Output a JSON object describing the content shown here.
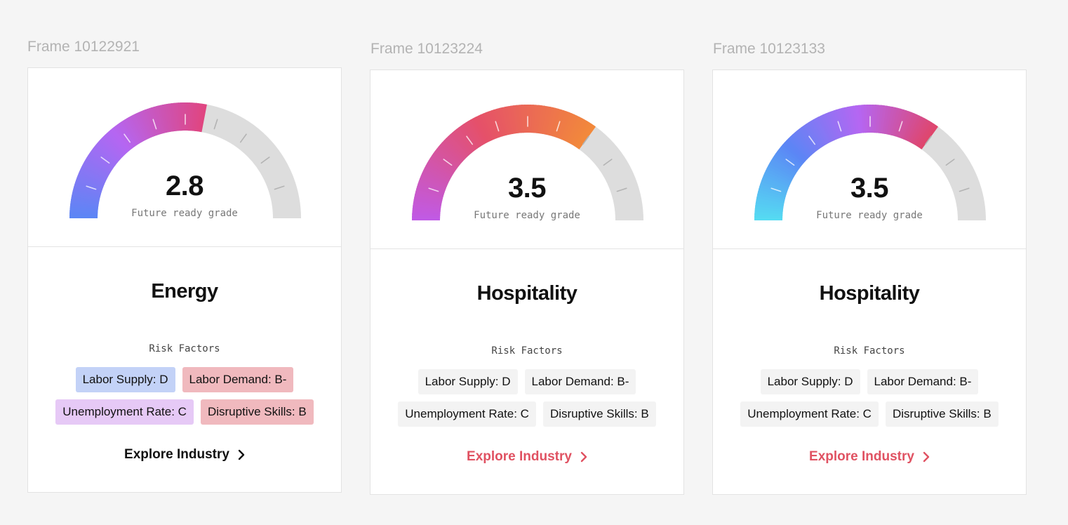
{
  "cards": [
    {
      "frame_label": "Frame 10122921",
      "grade": "2.8",
      "grade_fraction": 0.56,
      "grade_caption": "Future ready grade",
      "industry": "Energy",
      "risk_title": "Risk Factors",
      "gradient": [
        "#5b86f5",
        "#b566f2",
        "#e0457f"
      ],
      "chips": [
        {
          "label": "Labor Supply: D",
          "bg": "#c3d2f7"
        },
        {
          "label": "Labor Demand: B-",
          "bg": "#f0b9be"
        },
        {
          "label": "Unemployment Rate: C",
          "bg": "#e6c9f6"
        },
        {
          "label": "Disruptive Skills: B",
          "bg": "#f0b9be"
        }
      ],
      "explore_label": "Explore Industry",
      "explore_color": "#111111"
    },
    {
      "frame_label": "Frame 10123224",
      "grade": "3.5",
      "grade_fraction": 0.7,
      "grade_caption": "Future ready grade",
      "industry": "Hospitality",
      "risk_title": "Risk Factors",
      "gradient": [
        "#c05ae6",
        "#e5506a",
        "#f28a3a"
      ],
      "chips": [
        {
          "label": "Labor Supply: D",
          "bg": "#f3f3f3"
        },
        {
          "label": "Labor Demand: B-",
          "bg": "#f3f3f3"
        },
        {
          "label": "Unemployment Rate: C",
          "bg": "#f3f3f3"
        },
        {
          "label": "Disruptive Skills: B",
          "bg": "#f3f3f3"
        }
      ],
      "explore_label": "Explore Industry",
      "explore_color": "#e05262"
    },
    {
      "frame_label": "Frame 10123133",
      "grade": "3.5",
      "grade_fraction": 0.7,
      "grade_caption": "Future ready grade",
      "industry": "Hospitality",
      "risk_title": "Risk Factors",
      "gradient": [
        "#55dcf2",
        "#5b86f5",
        "#b566f2",
        "#e0456a"
      ],
      "chips": [
        {
          "label": "Labor Supply: D",
          "bg": "#f3f3f3"
        },
        {
          "label": "Labor Demand: B-",
          "bg": "#f3f3f3"
        },
        {
          "label": "Unemployment Rate: C",
          "bg": "#f3f3f3"
        },
        {
          "label": "Disruptive Skills: B",
          "bg": "#f3f3f3"
        }
      ],
      "explore_label": "Explore Industry",
      "explore_color": "#e05262"
    }
  ],
  "colors": {
    "track": "#dddddd",
    "tick": "#ffffff",
    "tick_track": "#b3b3b3"
  }
}
